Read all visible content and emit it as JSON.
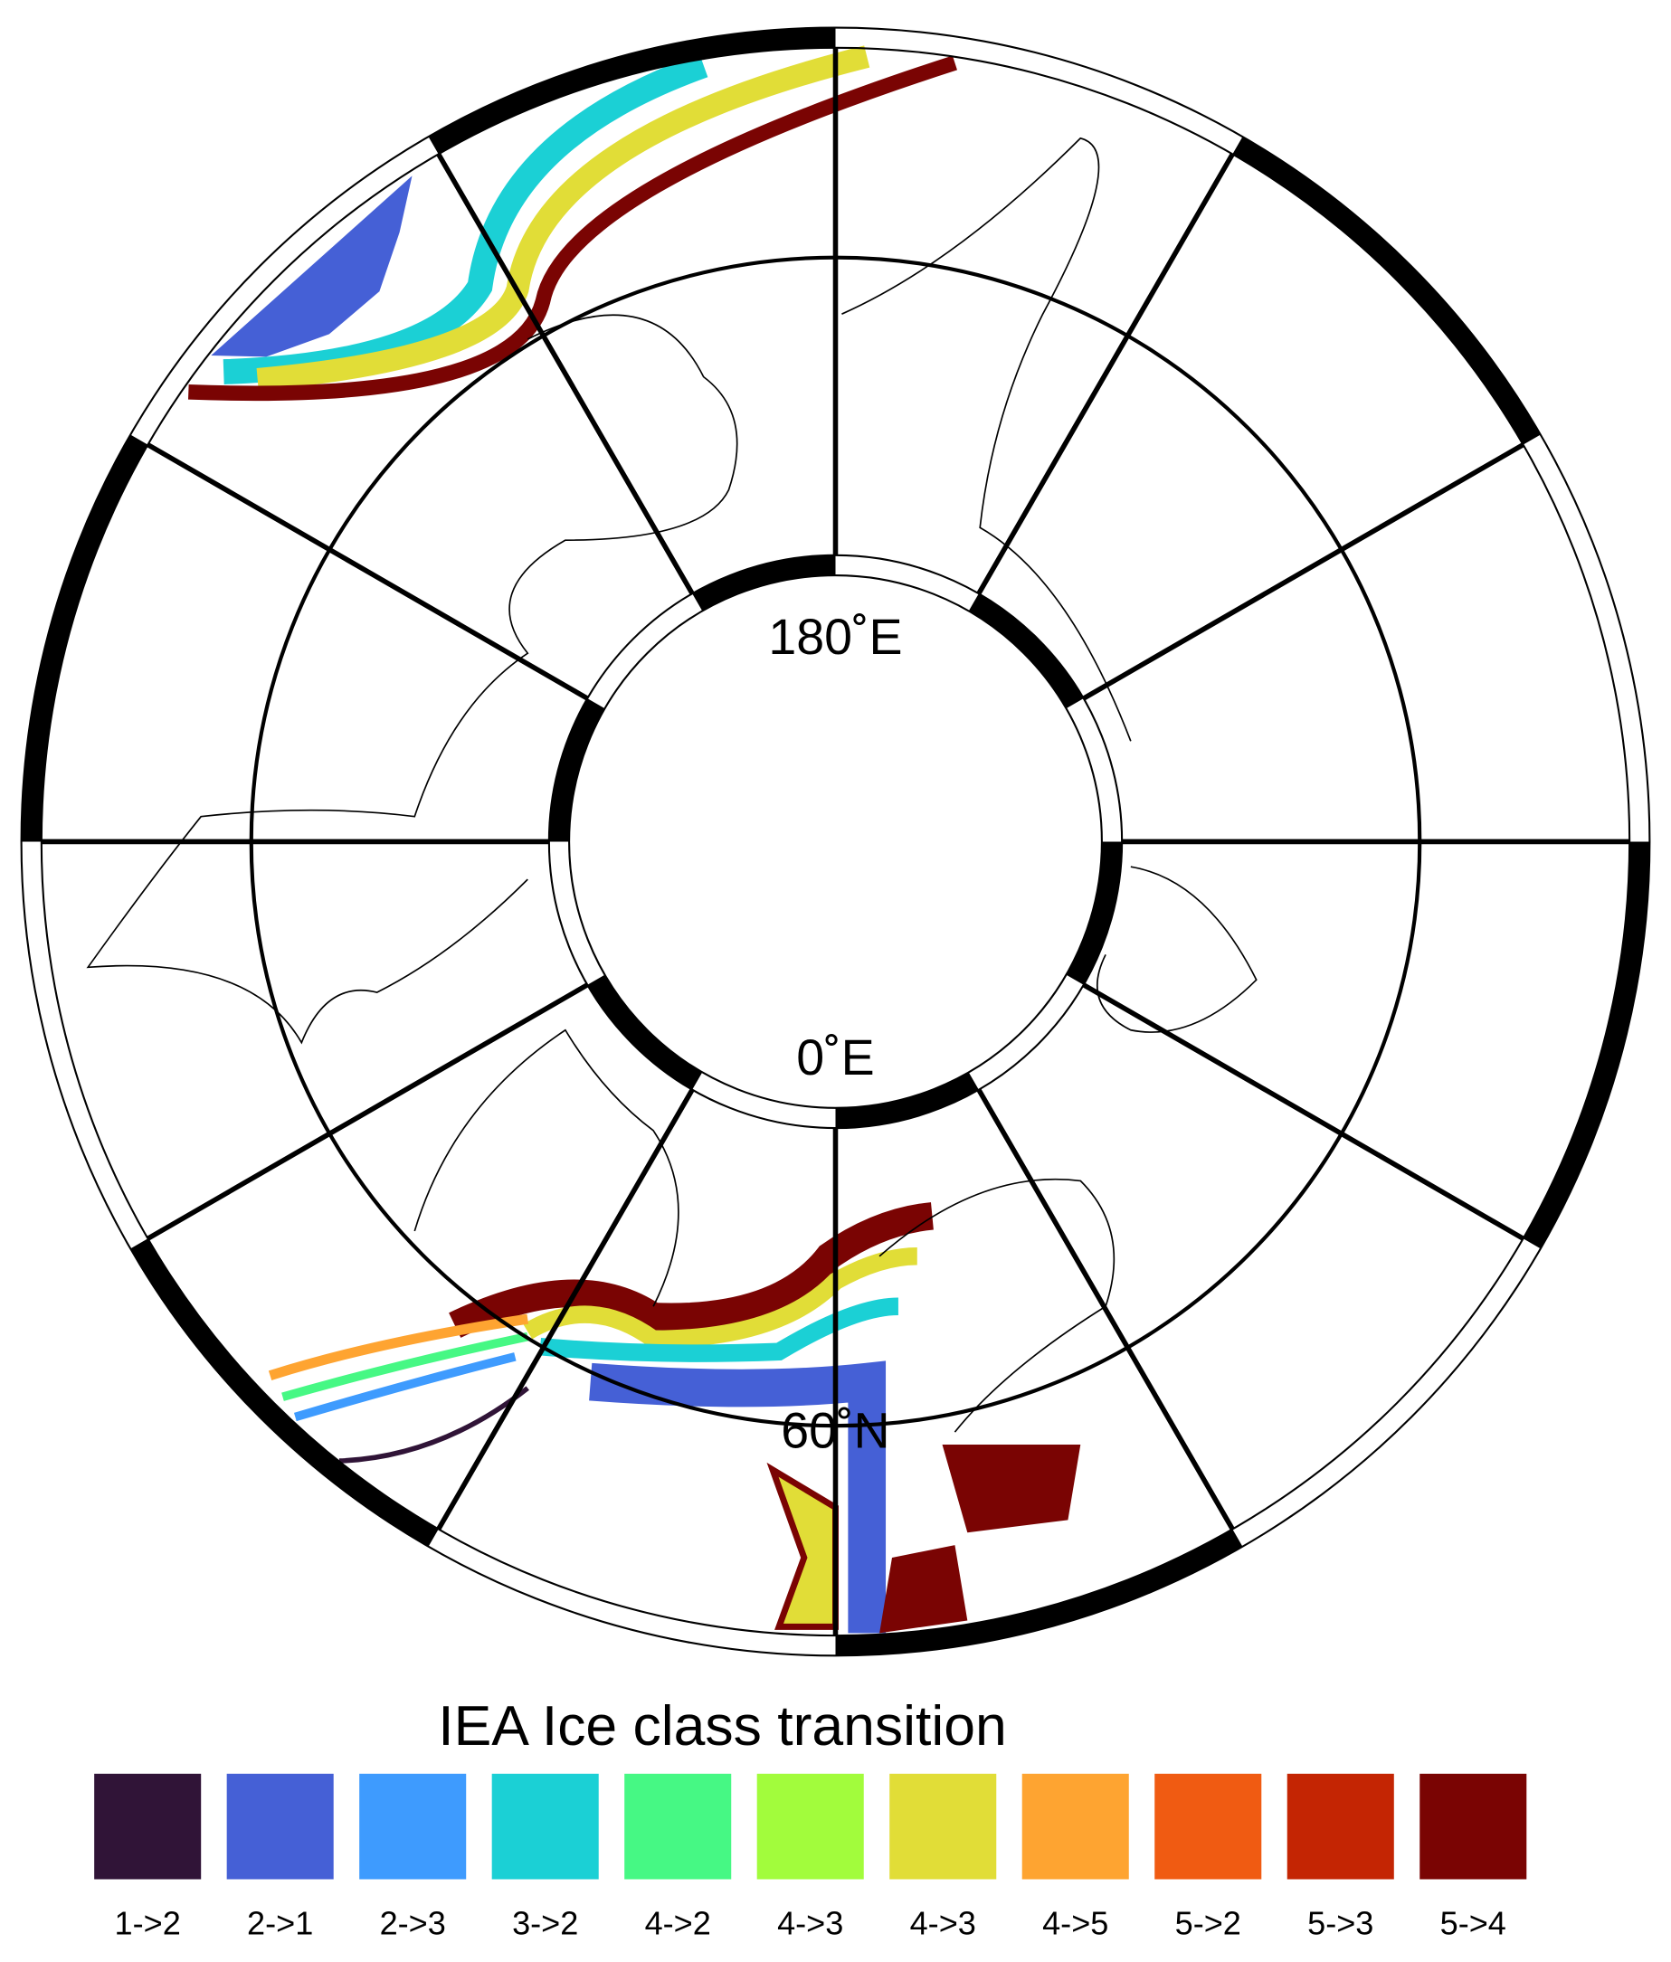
{
  "map": {
    "labels": {
      "top": "180˚E",
      "center": "0˚E",
      "lat": "60˚N"
    }
  },
  "legend": {
    "title": "IEA Ice class transition",
    "items": [
      {
        "label": "1->2",
        "color": "#301437"
      },
      {
        "label": "2->1",
        "color": "#4560d6"
      },
      {
        "label": "2->3",
        "color": "#3e9bfe"
      },
      {
        "label": "3->2",
        "color": "#1bd0d5"
      },
      {
        "label": "4->2",
        "color": "#46f884"
      },
      {
        "label": "4->3",
        "color": "#a2fc3c"
      },
      {
        "label": "4->3",
        "color": "#e1dd37"
      },
      {
        "label": "4->5",
        "color": "#fea431"
      },
      {
        "label": "5->2",
        "color": "#f05b12"
      },
      {
        "label": "5->3",
        "color": "#c42503"
      },
      {
        "label": "5->4",
        "color": "#7a0403"
      }
    ]
  }
}
